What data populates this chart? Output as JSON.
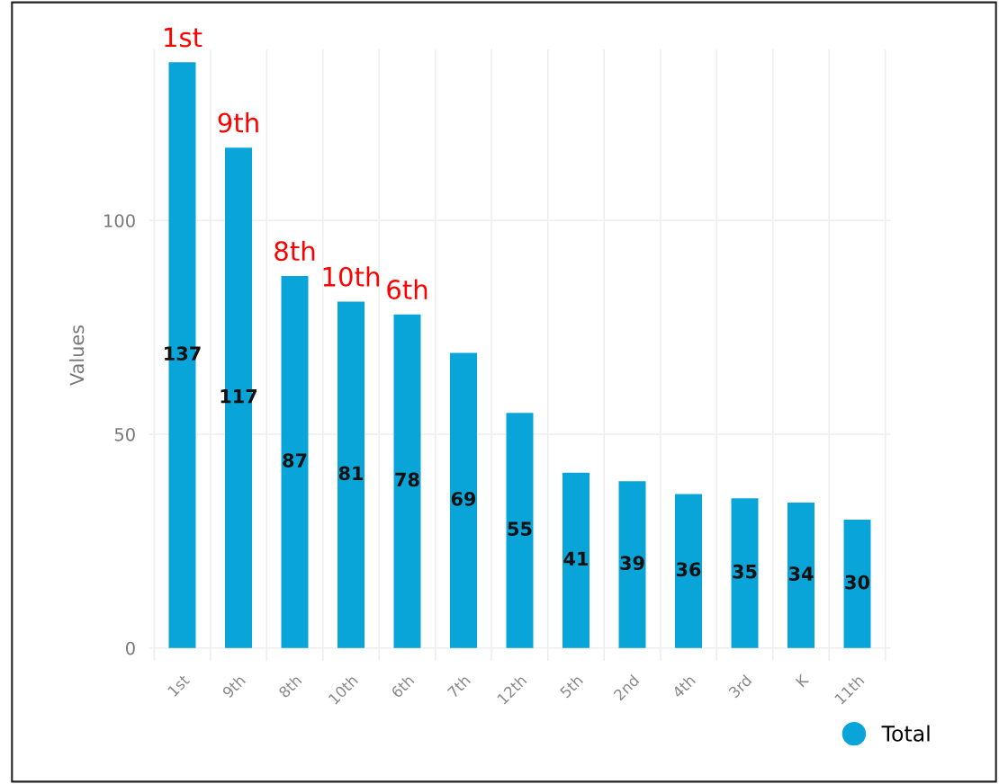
{
  "chart_data": {
    "type": "bar",
    "ylabel": "Values",
    "categories": [
      "1st",
      "9th",
      "8th",
      "10th",
      "6th",
      "7th",
      "12th",
      "5th",
      "2nd",
      "4th",
      "3rd",
      "K",
      "11th"
    ],
    "series": [
      {
        "name": "Total",
        "color": "#0aa5d8",
        "values": [
          137,
          117,
          87,
          81,
          78,
          69,
          55,
          41,
          39,
          36,
          35,
          34,
          30
        ]
      }
    ],
    "ylim": [
      -3,
      140
    ],
    "yticks": [
      0,
      50,
      100
    ],
    "grid": true,
    "legend": "bottom right",
    "data_labels": true,
    "annotations": [
      {
        "text": "1st",
        "x": "1st",
        "y": 137
      },
      {
        "text": "9th",
        "x": "9th",
        "y": 117
      },
      {
        "text": "8th",
        "x": "8th",
        "y": 87
      },
      {
        "text": "10th",
        "x": "10th",
        "y": 81
      },
      {
        "text": "6th",
        "x": "6th",
        "y": 78
      }
    ]
  }
}
